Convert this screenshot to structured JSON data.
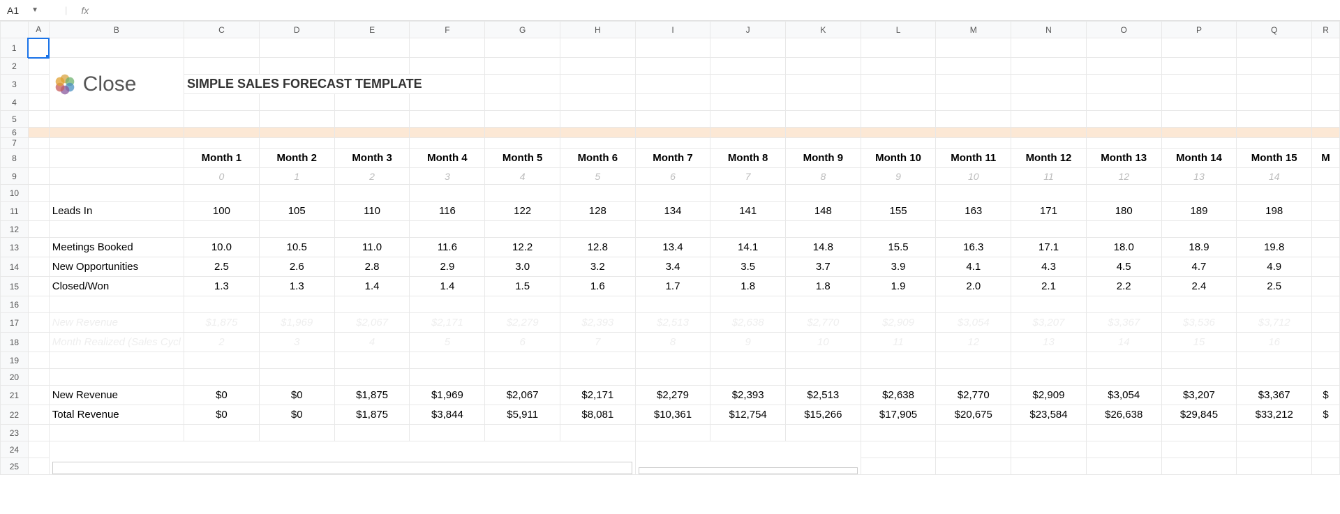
{
  "formula_bar": {
    "active_cell": "A1",
    "fx_label": "fx",
    "formula_value": ""
  },
  "columns": [
    "A",
    "B",
    "C",
    "D",
    "E",
    "F",
    "G",
    "H",
    "I",
    "J",
    "K",
    "L",
    "M",
    "N",
    "O",
    "P",
    "Q",
    "R"
  ],
  "row_numbers": [
    "1",
    "2",
    "3",
    "4",
    "5",
    "6",
    "7",
    "8",
    "9",
    "10",
    "11",
    "12",
    "13",
    "14",
    "15",
    "16",
    "17",
    "18",
    "19",
    "20",
    "21",
    "22",
    "23",
    "24",
    "25"
  ],
  "logo": {
    "brand": "Close",
    "colors": [
      "#d9a441",
      "#6fb36f",
      "#4a90c2",
      "#8a5a9e",
      "#c75b5b",
      "#e0a030"
    ]
  },
  "title": "SIMPLE SALES FORECAST TEMPLATE",
  "months": {
    "headers": [
      "Month 1",
      "Month 2",
      "Month 3",
      "Month 4",
      "Month 5",
      "Month 6",
      "Month 7",
      "Month 8",
      "Month 9",
      "Month 10",
      "Month 11",
      "Month 12",
      "Month 13",
      "Month 14",
      "Month 15",
      "M"
    ],
    "indices": [
      "0",
      "1",
      "2",
      "3",
      "4",
      "5",
      "6",
      "7",
      "8",
      "9",
      "10",
      "11",
      "12",
      "13",
      "14",
      ""
    ]
  },
  "metrics": {
    "leads_in": {
      "label": "Leads In",
      "values": [
        "100",
        "105",
        "110",
        "116",
        "122",
        "128",
        "134",
        "141",
        "148",
        "155",
        "163",
        "171",
        "180",
        "189",
        "198",
        ""
      ]
    },
    "meetings": {
      "label": "Meetings Booked",
      "values": [
        "10.0",
        "10.5",
        "11.0",
        "11.6",
        "12.2",
        "12.8",
        "13.4",
        "14.1",
        "14.8",
        "15.5",
        "16.3",
        "17.1",
        "18.0",
        "18.9",
        "19.8",
        ""
      ]
    },
    "new_opp": {
      "label": "New Opportunities",
      "values": [
        "2.5",
        "2.6",
        "2.8",
        "2.9",
        "3.0",
        "3.2",
        "3.4",
        "3.5",
        "3.7",
        "3.9",
        "4.1",
        "4.3",
        "4.5",
        "4.7",
        "4.9",
        ""
      ]
    },
    "closed": {
      "label": "Closed/Won",
      "values": [
        "1.3",
        "1.3",
        "1.4",
        "1.4",
        "1.5",
        "1.6",
        "1.7",
        "1.8",
        "1.8",
        "1.9",
        "2.0",
        "2.1",
        "2.2",
        "2.4",
        "2.5",
        ""
      ]
    }
  },
  "faded": {
    "new_rev": {
      "label": "New Revenue",
      "values": [
        "$1,875",
        "$1,969",
        "$2,067",
        "$2,171",
        "$2,279",
        "$2,393",
        "$2,513",
        "$2,638",
        "$2,770",
        "$2,909",
        "$3,054",
        "$3,207",
        "$3,367",
        "$3,536",
        "$3,712",
        ""
      ]
    },
    "month_real": {
      "label": "Month Realized (Sales Cycl",
      "values": [
        "2",
        "3",
        "4",
        "5",
        "6",
        "7",
        "8",
        "9",
        "10",
        "11",
        "12",
        "13",
        "14",
        "15",
        "16",
        ""
      ]
    }
  },
  "summary": {
    "new_rev": {
      "label": "New Revenue",
      "values": [
        "$0",
        "$0",
        "$1,875",
        "$1,969",
        "$2,067",
        "$2,171",
        "$2,279",
        "$2,393",
        "$2,513",
        "$2,638",
        "$2,770",
        "$2,909",
        "$3,054",
        "$3,207",
        "$3,367",
        "$"
      ]
    },
    "total_rev": {
      "label": "Total Revenue",
      "values": [
        "$0",
        "$0",
        "$1,875",
        "$3,844",
        "$5,911",
        "$8,081",
        "$10,361",
        "$12,754",
        "$15,266",
        "$17,905",
        "$20,675",
        "$23,584",
        "$26,638",
        "$29,845",
        "$33,212",
        "$"
      ]
    }
  },
  "colors": {
    "selection": "#1a73e8",
    "highlight_row": "#fce8d5",
    "grid": "#e8e8e8",
    "header_bg": "#f8f9fa"
  }
}
